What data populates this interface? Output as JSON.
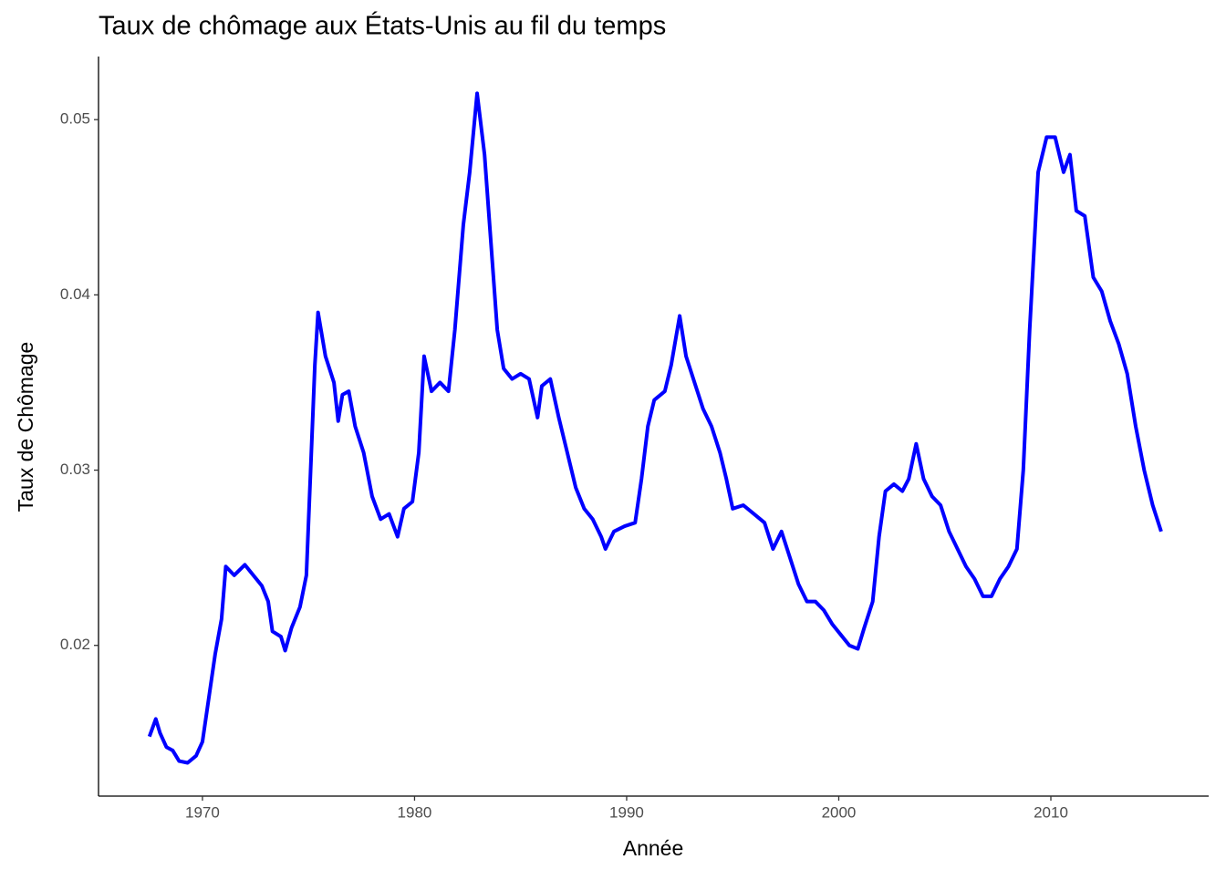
{
  "chart_data": {
    "type": "line",
    "title": "Taux de chômage aux États-Unis au fil du temps",
    "x_label": "Année",
    "y_label": "Taux de Chômage",
    "color": "#0000ff",
    "x": [
      1967.5,
      1967.8,
      1968.0,
      1968.3,
      1968.6,
      1968.9,
      1969.3,
      1969.7,
      1970.0,
      1970.3,
      1970.6,
      1970.9,
      1971.1,
      1971.5,
      1972.0,
      1972.4,
      1972.8,
      1973.1,
      1973.3,
      1973.7,
      1973.9,
      1974.2,
      1974.6,
      1974.9,
      1975.1,
      1975.3,
      1975.45,
      1975.8,
      1976.2,
      1976.4,
      1976.6,
      1976.9,
      1977.2,
      1977.6,
      1978.0,
      1978.4,
      1978.8,
      1979.2,
      1979.5,
      1979.9,
      1980.2,
      1980.45,
      1980.8,
      1981.2,
      1981.6,
      1981.9,
      1982.3,
      1982.6,
      1982.95,
      1983.3,
      1983.6,
      1983.9,
      1984.2,
      1984.6,
      1985.0,
      1985.4,
      1985.8,
      1986.0,
      1986.4,
      1986.8,
      1987.2,
      1987.6,
      1988.0,
      1988.4,
      1988.8,
      1989.0,
      1989.4,
      1989.9,
      1990.4,
      1990.7,
      1991.0,
      1991.3,
      1991.8,
      1992.1,
      1992.5,
      1992.8,
      1993.2,
      1993.6,
      1994.0,
      1994.4,
      1994.7,
      1995.0,
      1995.5,
      1996.0,
      1996.5,
      1996.9,
      1997.3,
      1997.7,
      1998.1,
      1998.5,
      1998.9,
      1999.3,
      1999.7,
      2000.1,
      2000.5,
      2000.9,
      2001.2,
      2001.6,
      2001.9,
      2002.2,
      2002.6,
      2003.0,
      2003.3,
      2003.65,
      2004.0,
      2004.4,
      2004.8,
      2005.2,
      2005.6,
      2006.0,
      2006.4,
      2006.8,
      2007.2,
      2007.6,
      2008.0,
      2008.4,
      2008.7,
      2009.0,
      2009.4,
      2009.8,
      2010.2,
      2010.6,
      2010.9,
      2011.2,
      2011.6,
      2012.0,
      2012.4,
      2012.8,
      2013.2,
      2013.6,
      2014.0,
      2014.4,
      2014.8,
      2015.2
    ],
    "values": [
      0.0148,
      0.0158,
      0.015,
      0.0142,
      0.014,
      0.0134,
      0.0133,
      0.0137,
      0.0145,
      0.017,
      0.0195,
      0.0215,
      0.0245,
      0.024,
      0.0246,
      0.024,
      0.0234,
      0.0225,
      0.0208,
      0.0205,
      0.0197,
      0.021,
      0.0222,
      0.024,
      0.03,
      0.036,
      0.039,
      0.0365,
      0.035,
      0.0328,
      0.0343,
      0.0345,
      0.0325,
      0.031,
      0.0285,
      0.0272,
      0.0275,
      0.0262,
      0.0278,
      0.0282,
      0.031,
      0.0365,
      0.0345,
      0.035,
      0.0345,
      0.038,
      0.044,
      0.047,
      0.0515,
      0.048,
      0.043,
      0.038,
      0.0358,
      0.0352,
      0.0355,
      0.0352,
      0.033,
      0.0348,
      0.0352,
      0.033,
      0.031,
      0.029,
      0.0278,
      0.0272,
      0.0262,
      0.0255,
      0.0265,
      0.0268,
      0.027,
      0.0295,
      0.0325,
      0.034,
      0.0345,
      0.036,
      0.0388,
      0.0365,
      0.035,
      0.0335,
      0.0325,
      0.031,
      0.0295,
      0.0278,
      0.028,
      0.0275,
      0.027,
      0.0255,
      0.0265,
      0.025,
      0.0235,
      0.0225,
      0.0225,
      0.022,
      0.0212,
      0.0206,
      0.02,
      0.0198,
      0.021,
      0.0225,
      0.0262,
      0.0288,
      0.0292,
      0.0288,
      0.0295,
      0.0315,
      0.0295,
      0.0285,
      0.028,
      0.0265,
      0.0255,
      0.0245,
      0.0238,
      0.0228,
      0.0228,
      0.0238,
      0.0245,
      0.0255,
      0.03,
      0.038,
      0.047,
      0.049,
      0.049,
      0.047,
      0.048,
      0.0448,
      0.0445,
      0.041,
      0.0402,
      0.0385,
      0.0372,
      0.0355,
      0.0325,
      0.03,
      0.028,
      0.0265
    ],
    "xlim": [
      1965.1,
      2017.44
    ],
    "xticks": [
      1970,
      1980,
      1990,
      2000,
      2010
    ],
    "ylim": [
      0.0114,
      0.0536
    ],
    "yticks": [
      0.02,
      0.03,
      0.04,
      0.05
    ]
  }
}
